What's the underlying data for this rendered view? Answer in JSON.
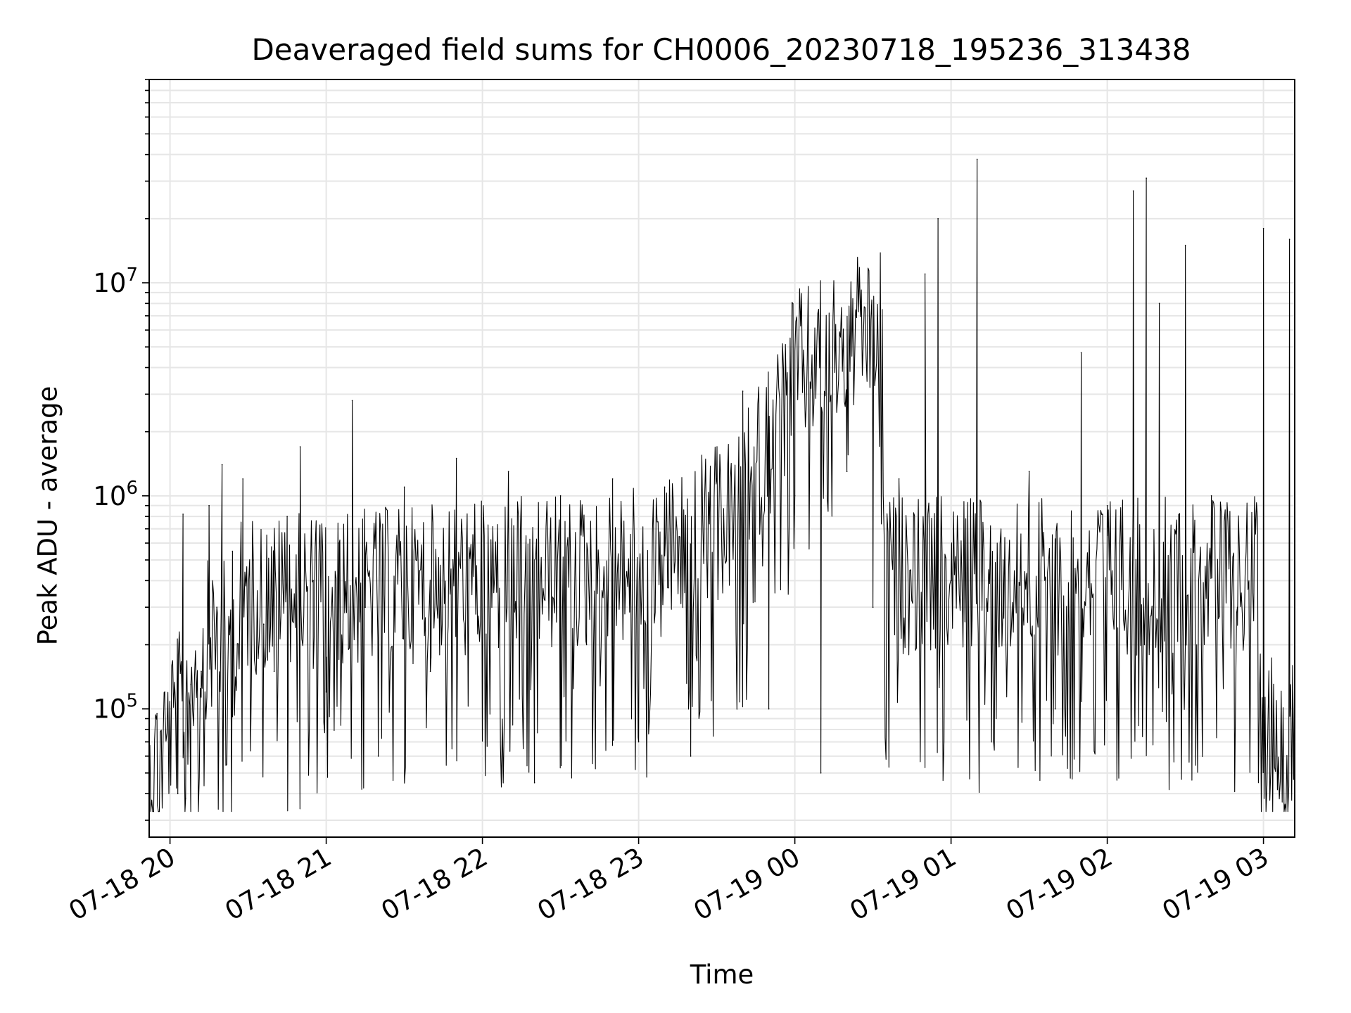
{
  "chart_data": {
    "type": "line",
    "title": "Deaveraged field sums for CH0006_20230718_195236_313438",
    "xlabel": "Time",
    "ylabel": "Peak ADU - average",
    "y_scale": "log",
    "ylim": [
      25000,
      90000000
    ],
    "xlim": [
      "2023-07-18T19:52",
      "2023-07-19T03:12"
    ],
    "grid": true,
    "x_ticks": [
      "07-18 20",
      "07-18 21",
      "07-18 22",
      "07-18 23",
      "07-19 00",
      "07-19 01",
      "07-19 02",
      "07-19 03"
    ],
    "y_ticks": [
      {
        "value": 100000,
        "base": "10",
        "exp": "5"
      },
      {
        "value": 1000000,
        "base": "10",
        "exp": "6"
      },
      {
        "value": 10000000,
        "base": "10",
        "exp": "7"
      }
    ],
    "series": [
      {
        "color": "#000000",
        "points": [
          [
            "2023-07-18T19:52",
            50000
          ],
          [
            "2023-07-18T19:55",
            95000
          ],
          [
            "2023-07-18T19:58",
            120000
          ],
          [
            "2023-07-18T20:00",
            100000
          ],
          [
            "2023-07-18T20:03",
            40000
          ],
          [
            "2023-07-18T20:05",
            820000
          ],
          [
            "2023-07-18T20:06",
            38000
          ],
          [
            "2023-07-18T20:08",
            130000
          ],
          [
            "2023-07-18T20:12",
            150000
          ],
          [
            "2023-07-18T20:15",
            900000
          ],
          [
            "2023-07-18T20:18",
            300000
          ],
          [
            "2023-07-18T20:20",
            1400000
          ],
          [
            "2023-07-18T20:24",
            550000
          ],
          [
            "2023-07-18T20:28",
            1200000
          ],
          [
            "2023-07-18T20:32",
            500000
          ],
          [
            "2023-07-18T20:36",
            250000
          ],
          [
            "2023-07-18T20:40",
            150000
          ],
          [
            "2023-07-18T20:45",
            800000
          ],
          [
            "2023-07-18T20:50",
            1700000
          ],
          [
            "2023-07-18T20:55",
            400000
          ],
          [
            "2023-07-18T21:00",
            120000
          ],
          [
            "2023-07-18T21:05",
            600000
          ],
          [
            "2023-07-18T21:10",
            2800000
          ],
          [
            "2023-07-18T21:15",
            300000
          ],
          [
            "2023-07-18T21:20",
            60000
          ],
          [
            "2023-07-18T21:30",
            1100000
          ],
          [
            "2023-07-18T21:40",
            150000
          ],
          [
            "2023-07-18T21:50",
            1500000
          ],
          [
            "2023-07-18T22:00",
            80000
          ],
          [
            "2023-07-18T22:10",
            1300000
          ],
          [
            "2023-07-18T22:20",
            45000
          ],
          [
            "2023-07-18T22:30",
            1000000
          ],
          [
            "2023-07-18T22:40",
            200000
          ],
          [
            "2023-07-18T22:50",
            1200000
          ],
          [
            "2023-07-18T23:00",
            70000
          ],
          [
            "2023-07-18T23:10",
            1100000
          ],
          [
            "2023-07-18T23:20",
            60000
          ],
          [
            "2023-07-18T23:30",
            1200000
          ],
          [
            "2023-07-18T23:40",
            3100000
          ],
          [
            "2023-07-18T23:50",
            100000
          ],
          [
            "2023-07-19T00:00",
            1000000
          ],
          [
            "2023-07-19T00:10",
            50000
          ],
          [
            "2023-07-19T00:20",
            1300000
          ],
          [
            "2023-07-19T00:30",
            300000
          ],
          [
            "2023-07-19T00:40",
            1200000
          ],
          [
            "2023-07-19T00:50",
            11000000
          ],
          [
            "2023-07-19T00:55",
            20000000
          ],
          [
            "2023-07-19T01:00",
            400000
          ],
          [
            "2023-07-19T01:10",
            38000000
          ],
          [
            "2023-07-19T01:20",
            500000
          ],
          [
            "2023-07-19T01:30",
            1300000
          ],
          [
            "2023-07-19T01:40",
            100000
          ],
          [
            "2023-07-19T01:50",
            4700000
          ],
          [
            "2023-07-19T02:00",
            900000
          ],
          [
            "2023-07-19T02:10",
            27000000
          ],
          [
            "2023-07-19T02:15",
            31000000
          ],
          [
            "2023-07-19T02:20",
            8000000
          ],
          [
            "2023-07-19T02:30",
            15000000
          ],
          [
            "2023-07-19T02:40",
            1000000
          ],
          [
            "2023-07-19T02:50",
            300000
          ],
          [
            "2023-07-19T03:00",
            18000000
          ],
          [
            "2023-07-19T03:10",
            16000000
          ],
          [
            "2023-07-19T03:12",
            180000
          ]
        ]
      }
    ]
  }
}
